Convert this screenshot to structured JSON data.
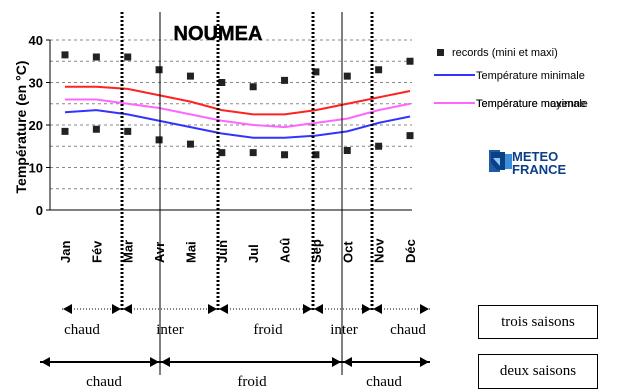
{
  "chart_data": {
    "type": "line",
    "title": "NOUMEA",
    "ylabel": "Température (en °C)",
    "xlabel": "",
    "categories": [
      "Jan",
      "Fév",
      "Mar",
      "Avr",
      "Mai",
      "Jun",
      "Jul",
      "Aoû",
      "Sep",
      "Oct",
      "Nov",
      "Déc"
    ],
    "ylim": [
      0,
      40
    ],
    "yticks": [
      0,
      10,
      20,
      30,
      40
    ],
    "grid": true,
    "series": [
      {
        "name": "Température minimale",
        "color": "#3333ff",
        "values": [
          23,
          23.5,
          22.5,
          21,
          19.5,
          18,
          17,
          17,
          17.5,
          18.5,
          20.5,
          22
        ]
      },
      {
        "name": "Température maximale",
        "color": "#ff2222",
        "values": [
          29,
          29,
          28.5,
          27,
          25.5,
          23.5,
          22.5,
          22.5,
          23.5,
          25,
          26.5,
          28
        ]
      },
      {
        "name": "Température moyenne",
        "color": "#ff66ff",
        "values": [
          26,
          26,
          25,
          24,
          22.5,
          21,
          20,
          19.5,
          20.5,
          21.5,
          23.5,
          25
        ]
      }
    ],
    "records": {
      "name": "records (mini et maxi)",
      "color": "#222222",
      "max": [
        36.5,
        36,
        36,
        33,
        31.5,
        30,
        29,
        30.5,
        32.5,
        31.5,
        33,
        35
      ],
      "min": [
        18.5,
        19,
        18.5,
        16.5,
        15.5,
        13.5,
        13.5,
        13,
        13,
        14,
        15,
        17.5
      ]
    },
    "legend_position": "right"
  },
  "logo": {
    "line1": "METEO",
    "line2": "FRANCE"
  },
  "seasons3": {
    "box_label": "trois saisons",
    "labels": [
      "chaud",
      "inter",
      "froid",
      "inter",
      "chaud"
    ]
  },
  "seasons2": {
    "box_label": "deux saisons",
    "labels": [
      "chaud",
      "froid",
      "chaud"
    ]
  }
}
